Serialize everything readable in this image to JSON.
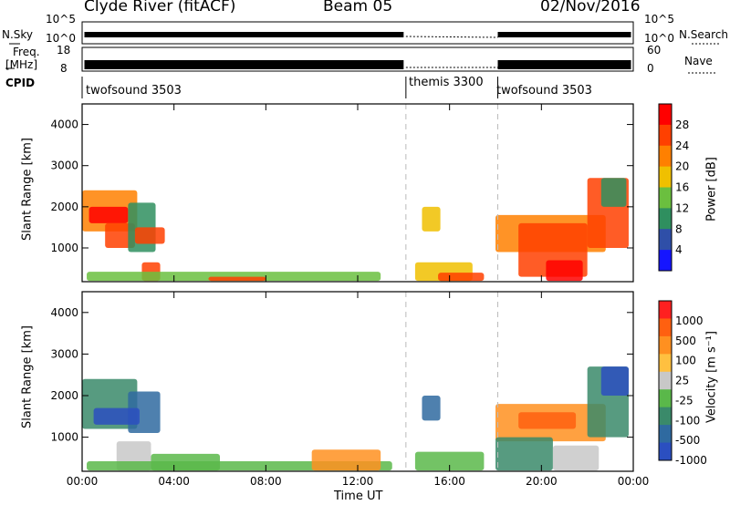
{
  "header": {
    "station": "Clyde River (fitACF)",
    "beam": "Beam 05",
    "date": "02/Nov/2016"
  },
  "left_labels": {
    "nsky": "N.Sky",
    "freq": "Freq.",
    "freq_unit": "[MHz]",
    "cpid": "CPID"
  },
  "right_labels": {
    "nsearch": "N.Search",
    "nave": "Nave"
  },
  "scales": {
    "nsky_top": "10^5",
    "nsky_bottom": "10^0",
    "nsearch_top": "10^5",
    "nsearch_bottom": "10^0",
    "freq_top": "18",
    "freq_bottom": "8",
    "nave_top": "60",
    "nave_bottom": "0"
  },
  "cpid_segments": [
    {
      "name": "twofsound 3503",
      "start_hour": 0.0
    },
    {
      "name": "themis 3300",
      "start_hour": 14.1
    },
    {
      "name": "twofsound 3503",
      "start_hour": 18.1
    }
  ],
  "colors": {
    "power_scale": [
      "#1515ff",
      "#2f4fa8",
      "#2f8f5f",
      "#6bbf3f",
      "#f0c000",
      "#ff8000",
      "#ff4000",
      "#ff0000"
    ],
    "velocity_scale": [
      "#2b4fc0",
      "#2f6aa0",
      "#3a8a6a",
      "#5ab84a",
      "#c8c8c8",
      "#ffc040",
      "#ff9020",
      "#ff6010",
      "#ff2020"
    ]
  },
  "chart_data": [
    {
      "type": "heatmap",
      "name": "power",
      "xlabel": "",
      "ylabel": "Slant Range [km]",
      "colorbar_label": "Power [dB]",
      "colorbar_ticks": [
        "28",
        "24",
        "20",
        "16",
        "12",
        "8",
        "4"
      ],
      "x_ticks": [
        "00:00",
        "04:00",
        "08:00",
        "12:00",
        "16:00",
        "20:00",
        "00:00"
      ],
      "y_ticks": [
        "4000",
        "3000",
        "2000",
        "1000"
      ],
      "xlim": [
        0,
        24
      ],
      "ylim": [
        180,
        4500
      ],
      "patches": [
        {
          "x0": 0.0,
          "x1": 2.4,
          "y0": 1400,
          "y1": 2400,
          "level": 5
        },
        {
          "x0": 0.3,
          "x1": 2.0,
          "y0": 1600,
          "y1": 2000,
          "level": 7
        },
        {
          "x0": 1.0,
          "x1": 2.3,
          "y0": 1000,
          "y1": 1600,
          "level": 6
        },
        {
          "x0": 2.0,
          "x1": 3.2,
          "y0": 900,
          "y1": 2100,
          "level": 2
        },
        {
          "x0": 2.3,
          "x1": 3.6,
          "y0": 1100,
          "y1": 1500,
          "level": 6
        },
        {
          "x0": 2.6,
          "x1": 3.4,
          "y0": 200,
          "y1": 650,
          "level": 6
        },
        {
          "x0": 0.2,
          "x1": 13.0,
          "y0": 200,
          "y1": 420,
          "level": 3
        },
        {
          "x0": 5.5,
          "x1": 8.0,
          "y0": 200,
          "y1": 300,
          "level": 6
        },
        {
          "x0": 14.8,
          "x1": 15.6,
          "y0": 1400,
          "y1": 2000,
          "level": 4
        },
        {
          "x0": 14.5,
          "x1": 17.0,
          "y0": 200,
          "y1": 650,
          "level": 4
        },
        {
          "x0": 15.5,
          "x1": 17.5,
          "y0": 200,
          "y1": 400,
          "level": 6
        },
        {
          "x0": 18.0,
          "x1": 22.8,
          "y0": 900,
          "y1": 1800,
          "level": 5
        },
        {
          "x0": 19.0,
          "x1": 22.0,
          "y0": 300,
          "y1": 1600,
          "level": 6
        },
        {
          "x0": 20.2,
          "x1": 21.8,
          "y0": 200,
          "y1": 700,
          "level": 7
        },
        {
          "x0": 22.0,
          "x1": 23.8,
          "y0": 1000,
          "y1": 2700,
          "level": 6
        },
        {
          "x0": 22.6,
          "x1": 23.7,
          "y0": 2000,
          "y1": 2700,
          "level": 2
        }
      ]
    },
    {
      "type": "heatmap",
      "name": "velocity",
      "xlabel": "Time UT",
      "ylabel": "Slant Range [km]",
      "colorbar_label": "Velocity [m s⁻¹]",
      "colorbar_ticks": [
        "1000",
        "500",
        "100",
        "25",
        "-25",
        "-100",
        "-500",
        "-1000"
      ],
      "x_ticks": [
        "00:00",
        "04:00",
        "08:00",
        "12:00",
        "16:00",
        "20:00",
        "00:00"
      ],
      "y_ticks": [
        "4000",
        "3000",
        "2000",
        "1000"
      ],
      "xlim": [
        0,
        24
      ],
      "ylim": [
        180,
        4500
      ],
      "patches": [
        {
          "x0": 0.0,
          "x1": 2.4,
          "y0": 1200,
          "y1": 2400,
          "level": 2
        },
        {
          "x0": 2.0,
          "x1": 3.4,
          "y0": 1100,
          "y1": 2100,
          "level": 1
        },
        {
          "x0": 0.5,
          "x1": 2.5,
          "y0": 1300,
          "y1": 1700,
          "level": 0
        },
        {
          "x0": 1.5,
          "x1": 3.0,
          "y0": 200,
          "y1": 900,
          "level": 4
        },
        {
          "x0": 0.2,
          "x1": 13.5,
          "y0": 200,
          "y1": 420,
          "level": 3
        },
        {
          "x0": 3.0,
          "x1": 6.0,
          "y0": 200,
          "y1": 600,
          "level": 3
        },
        {
          "x0": 10.0,
          "x1": 13.0,
          "y0": 200,
          "y1": 700,
          "level": 6
        },
        {
          "x0": 14.8,
          "x1": 15.6,
          "y0": 1400,
          "y1": 2000,
          "level": 1
        },
        {
          "x0": 14.5,
          "x1": 17.5,
          "y0": 200,
          "y1": 650,
          "level": 3
        },
        {
          "x0": 18.0,
          "x1": 22.8,
          "y0": 900,
          "y1": 1800,
          "level": 6
        },
        {
          "x0": 19.0,
          "x1": 21.5,
          "y0": 1200,
          "y1": 1600,
          "level": 7
        },
        {
          "x0": 18.0,
          "x1": 20.5,
          "y0": 200,
          "y1": 1000,
          "level": 2
        },
        {
          "x0": 20.5,
          "x1": 22.5,
          "y0": 200,
          "y1": 800,
          "level": 4
        },
        {
          "x0": 22.0,
          "x1": 23.8,
          "y0": 1000,
          "y1": 2700,
          "level": 2
        },
        {
          "x0": 22.6,
          "x1": 23.8,
          "y0": 2000,
          "y1": 2700,
          "level": 0
        }
      ]
    }
  ]
}
